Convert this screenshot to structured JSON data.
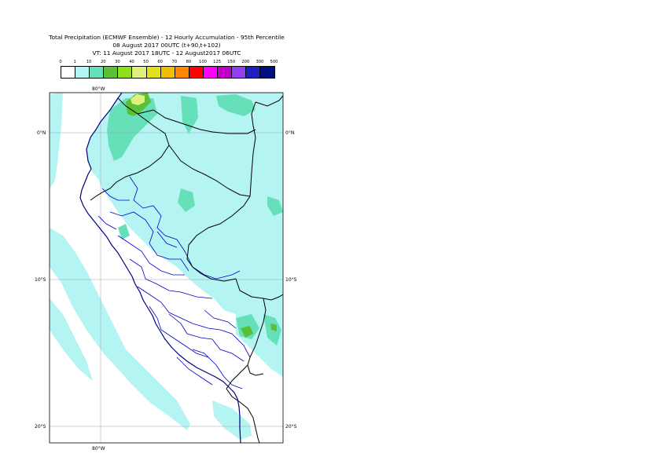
{
  "header": {
    "line1": "Total Precipitation (ECMWF Ensemble) - 12 Hourly Accumulation - 95th Percentile",
    "line2": "08 August 2017 00UTC (t+90,t+102)",
    "line3": "VT: 11 August 2017 18UTC - 12 August2017 06UTC"
  },
  "legend": {
    "labels": [
      "0",
      "1",
      "10",
      "20",
      "30",
      "40",
      "50",
      "60",
      "70",
      "80",
      "100",
      "125",
      "150",
      "200",
      "300",
      "500"
    ],
    "colors": [
      "#ffffff",
      "#b4f4f2",
      "#66e0b8",
      "#5ac036",
      "#8ee01c",
      "#e0f07c",
      "#e0e01c",
      "#f0c000",
      "#ff8800",
      "#ff0000",
      "#ff00ff",
      "#c000c8",
      "#9040f0",
      "#2020c0",
      "#001080"
    ]
  },
  "map": {
    "lat_labels_left": [
      "0°N",
      "10°S",
      "20°S"
    ],
    "lat_labels_right": [
      "0°N",
      "10°S",
      "20°S"
    ],
    "lon_label_top": "80°W",
    "lon_label_bottom": "80°W",
    "colors": {
      "light": "#b4f4f2",
      "mid": "#66e0b8",
      "green": "#5ac036",
      "yellowgreen": "#8ee01c",
      "yellow": "#e0f07c",
      "border": "#000000",
      "internal": "#0000c8",
      "grid": "#a0a0a0"
    }
  }
}
